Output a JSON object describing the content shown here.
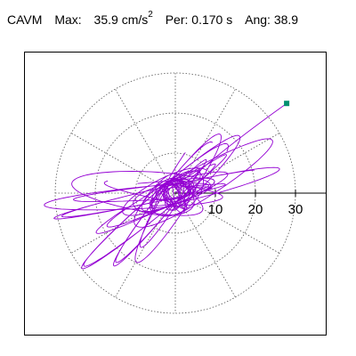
{
  "header": {
    "label": "CAVM",
    "max_label": "Max:",
    "max_value": "35.9",
    "max_unit": "cm/s",
    "max_exp": "2",
    "per_label": "Per:",
    "per_value": "0.170 s",
    "ang_label": "Ang:",
    "ang_value": "38.9"
  },
  "chart_data": {
    "type": "polar-orbit",
    "title": "CAVM",
    "max_magnitude": 35.9,
    "max_unit": "cm/s2",
    "period_s": 0.17,
    "angle_deg": 38.9,
    "radial_ticks": [
      "10",
      "20",
      "30"
    ],
    "radial_tick_values": [
      10,
      20,
      30
    ],
    "rmax": 30,
    "grid": true,
    "grid_style": "dotted",
    "spoke_step_deg": 30,
    "colors": {
      "trace": "#9400d3",
      "marker": "#008f70",
      "grid": "#555555",
      "axis": "#000000"
    },
    "peak_point": [
      27.8,
      22.4
    ],
    "orbit_segments": [
      {
        "amplitude": 30,
        "angle_deg": 38.9,
        "ratio": 0.12,
        "phase": 0.0,
        "turns": 3
      },
      {
        "amplitude": 32,
        "angle_deg": 12,
        "ratio": 0.08,
        "phase": 0.7,
        "turns": 3
      },
      {
        "amplitude": 33,
        "angle_deg": 5,
        "ratio": 0.1,
        "phase": 1.4,
        "turns": 2
      },
      {
        "amplitude": 28,
        "angle_deg": 28,
        "ratio": 0.18,
        "phase": 2.1,
        "turns": 3
      },
      {
        "amplitude": 24,
        "angle_deg": 50,
        "ratio": 0.14,
        "phase": 0.3,
        "turns": 3
      },
      {
        "amplitude": 20,
        "angle_deg": 60,
        "ratio": 0.2,
        "phase": 1.0,
        "turns": 2
      },
      {
        "amplitude": 26,
        "angle_deg": -5,
        "ratio": 0.22,
        "phase": 2.5,
        "turns": 2
      },
      {
        "amplitude": 14,
        "angle_deg": 20,
        "ratio": 0.4,
        "phase": 0.5,
        "turns": 4
      },
      {
        "amplitude": 8,
        "angle_deg": 35,
        "ratio": 0.6,
        "phase": 1.8,
        "turns": 6
      },
      {
        "amplitude": 5,
        "angle_deg": 10,
        "ratio": 0.7,
        "phase": 0.9,
        "turns": 6
      }
    ]
  }
}
